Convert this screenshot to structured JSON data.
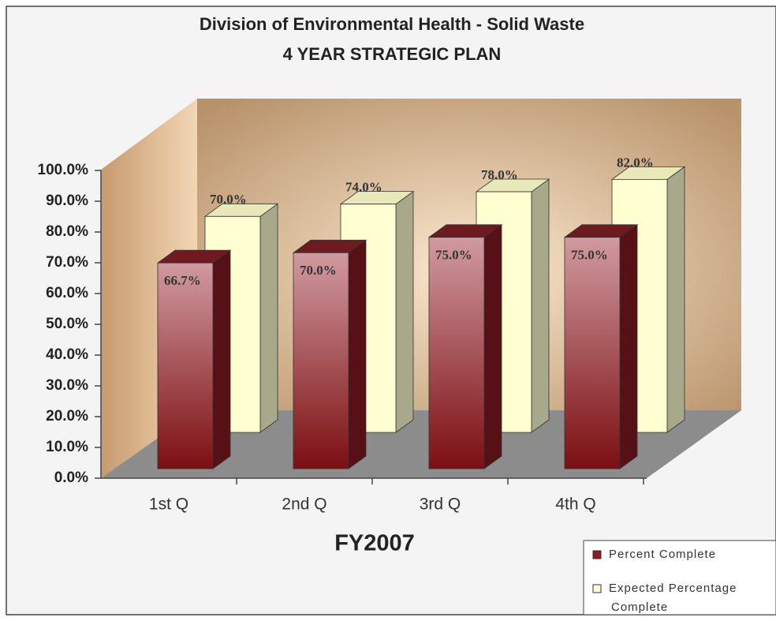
{
  "chart_data": {
    "type": "bar3d",
    "title": "Division of Environmental Health - Solid Waste",
    "subtitle": "4 YEAR STRATEGIC PLAN",
    "xlabel": "FY2007",
    "categories": [
      "1st Q",
      "2nd Q",
      "3rd Q",
      "4th Q"
    ],
    "series": [
      {
        "name": "Percent Complete",
        "color": "#8e1a22",
        "values": [
          66.7,
          70,
          75,
          75
        ],
        "value_labels": [
          "66.7%",
          "70.0%",
          "75.0%",
          "75.0%"
        ]
      },
      {
        "name": "Expected Percentage Complete",
        "color": "#ffffd2",
        "values": [
          70,
          74,
          78,
          82
        ],
        "value_labels": [
          "70.0%",
          "74.0%",
          "78.0%",
          "82.0%"
        ]
      }
    ],
    "ylim": [
      0,
      100
    ],
    "yticks": [
      {
        "value": 0,
        "label": "0.0%"
      },
      {
        "value": 10,
        "label": "10.0%"
      },
      {
        "value": 20,
        "label": "20.0%"
      },
      {
        "value": 30,
        "label": "30.0%"
      },
      {
        "value": 40,
        "label": "40.0%"
      },
      {
        "value": 50,
        "label": "50.0%"
      },
      {
        "value": 60,
        "label": "60.0%"
      },
      {
        "value": 70,
        "label": "70.0%"
      },
      {
        "value": 80,
        "label": "80.0%"
      },
      {
        "value": 90,
        "label": "90.0%"
      },
      {
        "value": 100,
        "label": "100.0%"
      }
    ]
  }
}
